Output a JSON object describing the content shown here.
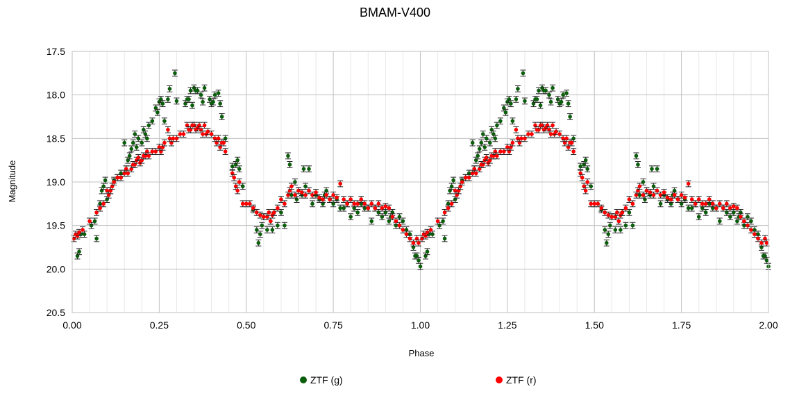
{
  "chart_data": {
    "type": "scatter",
    "title": "BMAM-V400",
    "xlabel": "Phase",
    "ylabel": "Magnitude",
    "xlim": [
      0.0,
      2.0
    ],
    "ylim": [
      17.5,
      20.5
    ],
    "y_inverted": true,
    "grid": true,
    "legend_placement": "bottom",
    "x_ticks": [
      "0.00",
      "0.25",
      "0.50",
      "0.75",
      "1.00",
      "1.25",
      "1.50",
      "1.75",
      "2.00"
    ],
    "y_ticks": [
      "17.5",
      "18.0",
      "18.5",
      "19.0",
      "19.5",
      "20.0",
      "20.5"
    ],
    "series": [
      {
        "name": "ZTF (g)",
        "color": "#0b5e0b",
        "points": [
          [
            0.015,
            19.85
          ],
          [
            0.02,
            19.8
          ],
          [
            0.025,
            19.6
          ],
          [
            0.035,
            19.6
          ],
          [
            0.055,
            19.5
          ],
          [
            0.065,
            19.45
          ],
          [
            0.07,
            19.65
          ],
          [
            0.08,
            19.25
          ],
          [
            0.085,
            19.1
          ],
          [
            0.09,
            19.05
          ],
          [
            0.095,
            18.98
          ],
          [
            0.1,
            19.2
          ],
          [
            0.11,
            19.1
          ],
          [
            0.12,
            18.98
          ],
          [
            0.13,
            18.95
          ],
          [
            0.14,
            18.9
          ],
          [
            0.15,
            18.55
          ],
          [
            0.155,
            18.85
          ],
          [
            0.16,
            18.75
          ],
          [
            0.165,
            18.7
          ],
          [
            0.17,
            18.62
          ],
          [
            0.175,
            18.55
          ],
          [
            0.18,
            18.45
          ],
          [
            0.185,
            18.6
          ],
          [
            0.19,
            18.5
          ],
          [
            0.2,
            18.55
          ],
          [
            0.205,
            18.4
          ],
          [
            0.21,
            18.45
          ],
          [
            0.215,
            18.5
          ],
          [
            0.22,
            18.35
          ],
          [
            0.23,
            18.3
          ],
          [
            0.24,
            18.15
          ],
          [
            0.245,
            18.2
          ],
          [
            0.25,
            18.08
          ],
          [
            0.255,
            18.05
          ],
          [
            0.26,
            18.1
          ],
          [
            0.265,
            18.3
          ],
          [
            0.275,
            18.05
          ],
          [
            0.28,
            17.93
          ],
          [
            0.295,
            17.75
          ],
          [
            0.3,
            18.07
          ],
          [
            0.325,
            18.1
          ],
          [
            0.33,
            18.05
          ],
          [
            0.335,
            18.05
          ],
          [
            0.34,
            17.95
          ],
          [
            0.345,
            18.12
          ],
          [
            0.35,
            17.92
          ],
          [
            0.355,
            17.95
          ],
          [
            0.36,
            17.95
          ],
          [
            0.37,
            18.0
          ],
          [
            0.375,
            18.08
          ],
          [
            0.38,
            17.92
          ],
          [
            0.395,
            18.05
          ],
          [
            0.4,
            18.1
          ],
          [
            0.405,
            18.08
          ],
          [
            0.41,
            18.0
          ],
          [
            0.42,
            17.98
          ],
          [
            0.425,
            18.1
          ],
          [
            0.43,
            18.25
          ],
          [
            0.44,
            18.5
          ],
          [
            0.46,
            18.82
          ],
          [
            0.47,
            18.8
          ],
          [
            0.475,
            18.75
          ],
          [
            0.48,
            18.85
          ],
          [
            0.49,
            19.05
          ],
          [
            0.52,
            19.32
          ],
          [
            0.53,
            19.55
          ],
          [
            0.535,
            19.7
          ],
          [
            0.54,
            19.6
          ],
          [
            0.545,
            19.5
          ],
          [
            0.55,
            19.4
          ],
          [
            0.56,
            19.55
          ],
          [
            0.57,
            19.45
          ],
          [
            0.575,
            19.55
          ],
          [
            0.58,
            19.35
          ],
          [
            0.59,
            19.5
          ],
          [
            0.6,
            19.35
          ],
          [
            0.61,
            19.5
          ],
          [
            0.62,
            18.7
          ],
          [
            0.625,
            18.8
          ],
          [
            0.63,
            19.15
          ],
          [
            0.64,
            19.0
          ],
          [
            0.645,
            19.2
          ],
          [
            0.65,
            19.1
          ],
          [
            0.66,
            19.15
          ],
          [
            0.665,
            18.85
          ],
          [
            0.67,
            19.05
          ],
          [
            0.68,
            18.85
          ],
          [
            0.69,
            19.25
          ],
          [
            0.7,
            19.15
          ],
          [
            0.71,
            19.2
          ],
          [
            0.72,
            19.25
          ],
          [
            0.725,
            19.15
          ],
          [
            0.73,
            19.1
          ],
          [
            0.74,
            19.2
          ],
          [
            0.75,
            19.25
          ],
          [
            0.76,
            19.2
          ],
          [
            0.77,
            19.3
          ],
          [
            0.78,
            19.3
          ],
          [
            0.79,
            19.25
          ],
          [
            0.8,
            19.4
          ],
          [
            0.81,
            19.3
          ],
          [
            0.82,
            19.35
          ],
          [
            0.83,
            19.25
          ],
          [
            0.84,
            19.3
          ],
          [
            0.85,
            19.3
          ],
          [
            0.86,
            19.45
          ],
          [
            0.87,
            19.3
          ],
          [
            0.88,
            19.35
          ],
          [
            0.89,
            19.4
          ],
          [
            0.9,
            19.35
          ],
          [
            0.91,
            19.45
          ],
          [
            0.915,
            19.4
          ],
          [
            0.92,
            19.35
          ],
          [
            0.93,
            19.5
          ],
          [
            0.94,
            19.4
          ],
          [
            0.95,
            19.45
          ],
          [
            0.96,
            19.55
          ],
          [
            0.97,
            19.6
          ],
          [
            0.98,
            19.75
          ],
          [
            0.985,
            19.85
          ],
          [
            0.99,
            19.85
          ],
          [
            0.995,
            19.9
          ],
          [
            1.0,
            19.97
          ]
        ]
      },
      {
        "name": "ZTF (r)",
        "color": "#ff0000",
        "points": [
          [
            0.005,
            19.65
          ],
          [
            0.01,
            19.6
          ],
          [
            0.015,
            19.62
          ],
          [
            0.02,
            19.58
          ],
          [
            0.03,
            19.55
          ],
          [
            0.05,
            19.45
          ],
          [
            0.07,
            19.35
          ],
          [
            0.08,
            19.3
          ],
          [
            0.09,
            19.25
          ],
          [
            0.1,
            19.1
          ],
          [
            0.105,
            19.15
          ],
          [
            0.11,
            19.1
          ],
          [
            0.115,
            19.05
          ],
          [
            0.12,
            19.0
          ],
          [
            0.13,
            18.95
          ],
          [
            0.14,
            18.95
          ],
          [
            0.15,
            18.9
          ],
          [
            0.155,
            18.85
          ],
          [
            0.16,
            18.9
          ],
          [
            0.17,
            18.85
          ],
          [
            0.175,
            18.8
          ],
          [
            0.18,
            18.8
          ],
          [
            0.185,
            18.75
          ],
          [
            0.19,
            18.72
          ],
          [
            0.195,
            18.78
          ],
          [
            0.2,
            18.75
          ],
          [
            0.205,
            18.7
          ],
          [
            0.21,
            18.7
          ],
          [
            0.215,
            18.65
          ],
          [
            0.22,
            18.7
          ],
          [
            0.23,
            18.65
          ],
          [
            0.24,
            18.65
          ],
          [
            0.25,
            18.6
          ],
          [
            0.255,
            18.65
          ],
          [
            0.26,
            18.6
          ],
          [
            0.265,
            18.55
          ],
          [
            0.275,
            18.4
          ],
          [
            0.28,
            18.5
          ],
          [
            0.285,
            18.55
          ],
          [
            0.29,
            18.5
          ],
          [
            0.3,
            18.5
          ],
          [
            0.31,
            18.45
          ],
          [
            0.32,
            18.45
          ],
          [
            0.33,
            18.35
          ],
          [
            0.335,
            18.4
          ],
          [
            0.34,
            18.4
          ],
          [
            0.345,
            18.35
          ],
          [
            0.35,
            18.35
          ],
          [
            0.355,
            18.4
          ],
          [
            0.36,
            18.38
          ],
          [
            0.365,
            18.35
          ],
          [
            0.37,
            18.4
          ],
          [
            0.375,
            18.45
          ],
          [
            0.38,
            18.35
          ],
          [
            0.385,
            18.45
          ],
          [
            0.39,
            18.42
          ],
          [
            0.4,
            18.45
          ],
          [
            0.41,
            18.5
          ],
          [
            0.415,
            18.55
          ],
          [
            0.42,
            18.5
          ],
          [
            0.425,
            18.6
          ],
          [
            0.43,
            18.55
          ],
          [
            0.435,
            18.55
          ],
          [
            0.44,
            18.65
          ],
          [
            0.46,
            18.9
          ],
          [
            0.465,
            18.95
          ],
          [
            0.47,
            19.05
          ],
          [
            0.475,
            19.1
          ],
          [
            0.48,
            19.0
          ],
          [
            0.49,
            19.25
          ],
          [
            0.5,
            19.25
          ],
          [
            0.51,
            19.25
          ],
          [
            0.52,
            19.3
          ],
          [
            0.53,
            19.35
          ],
          [
            0.54,
            19.38
          ],
          [
            0.55,
            19.4
          ],
          [
            0.56,
            19.4
          ],
          [
            0.565,
            19.35
          ],
          [
            0.57,
            19.45
          ],
          [
            0.575,
            19.38
          ],
          [
            0.58,
            19.35
          ],
          [
            0.59,
            19.3
          ],
          [
            0.6,
            19.2
          ],
          [
            0.61,
            19.25
          ],
          [
            0.62,
            19.15
          ],
          [
            0.625,
            19.1
          ],
          [
            0.63,
            19.05
          ],
          [
            0.64,
            19.15
          ],
          [
            0.65,
            19.1
          ],
          [
            0.66,
            19.12
          ],
          [
            0.67,
            19.15
          ],
          [
            0.68,
            19.1
          ],
          [
            0.69,
            19.15
          ],
          [
            0.7,
            19.12
          ],
          [
            0.71,
            19.18
          ],
          [
            0.72,
            19.2
          ],
          [
            0.73,
            19.15
          ],
          [
            0.74,
            19.2
          ],
          [
            0.75,
            19.15
          ],
          [
            0.76,
            19.18
          ],
          [
            0.77,
            19.02
          ],
          [
            0.78,
            19.2
          ],
          [
            0.79,
            19.25
          ],
          [
            0.8,
            19.2
          ],
          [
            0.81,
            19.25
          ],
          [
            0.82,
            19.25
          ],
          [
            0.83,
            19.2
          ],
          [
            0.84,
            19.25
          ],
          [
            0.85,
            19.3
          ],
          [
            0.86,
            19.25
          ],
          [
            0.87,
            19.3
          ],
          [
            0.88,
            19.25
          ],
          [
            0.89,
            19.3
          ],
          [
            0.9,
            19.28
          ],
          [
            0.91,
            19.3
          ],
          [
            0.92,
            19.4
          ],
          [
            0.93,
            19.45
          ],
          [
            0.94,
            19.5
          ],
          [
            0.95,
            19.55
          ],
          [
            0.96,
            19.6
          ],
          [
            0.97,
            19.65
          ],
          [
            0.98,
            19.7
          ],
          [
            0.99,
            19.65
          ],
          [
            0.995,
            19.7
          ]
        ]
      }
    ]
  }
}
